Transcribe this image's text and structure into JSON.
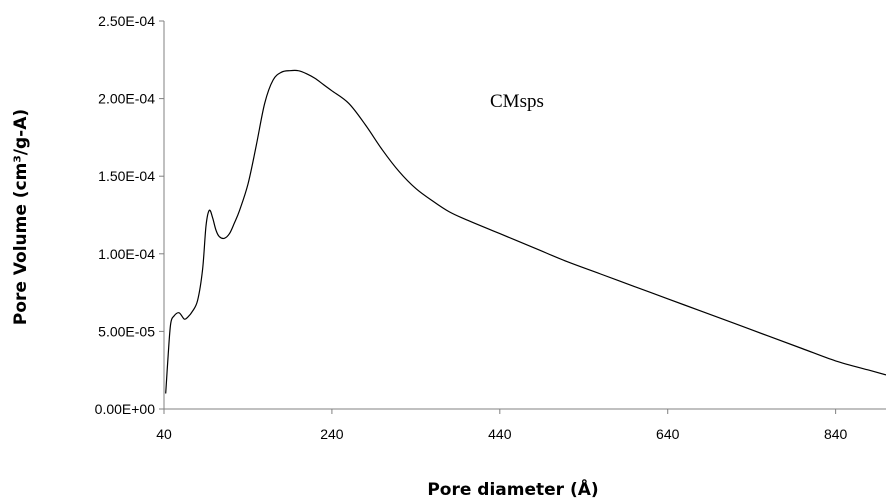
{
  "chart_data": {
    "type": "line",
    "xlabel": "Pore diameter (Å)",
    "ylabel": "Pore Volume (cm³/g-A)",
    "annotation": "CMsps",
    "xlim": [
      40,
      900
    ],
    "ylim": [
      0,
      0.00025
    ],
    "x_ticks": [
      40,
      240,
      440,
      640,
      840
    ],
    "x_tick_labels": [
      "40",
      "240",
      "440",
      "640",
      "840"
    ],
    "y_ticks": [
      0,
      5e-05,
      0.0001,
      0.00015,
      0.0002,
      0.00025
    ],
    "y_tick_labels": [
      "0.00E+00",
      "5.00E-05",
      "1.00E-04",
      "1.50E-04",
      "2.00E-04",
      "2.50E-04"
    ],
    "grid": false,
    "legend": "none",
    "series": [
      {
        "x": [
          42,
          45,
          48,
          52,
          58,
          64,
          68,
          74,
          80,
          86,
          90,
          94,
          98,
          102,
          106,
          112,
          118,
          124,
          130,
          140,
          150,
          160,
          170,
          180,
          190,
          200,
          210,
          220,
          230,
          240,
          260,
          280,
          300,
          320,
          340,
          360,
          380,
          400,
          440,
          480,
          520,
          560,
          600,
          640,
          680,
          720,
          760,
          800,
          840,
          880,
          900
        ],
        "y": [
          1e-05,
          3.5e-05,
          5.5e-05,
          6e-05,
          6.2e-05,
          5.8e-05,
          5.9e-05,
          6.3e-05,
          7e-05,
          9e-05,
          0.000118,
          0.000128,
          0.000123,
          0.000115,
          0.000111,
          0.00011,
          0.000113,
          0.00012,
          0.000128,
          0.000145,
          0.00017,
          0.000197,
          0.000212,
          0.000217,
          0.000218,
          0.000218,
          0.000216,
          0.000213,
          0.000209,
          0.000205,
          0.000197,
          0.000183,
          0.000167,
          0.000153,
          0.000142,
          0.000134,
          0.000127,
          0.000122,
          0.000113,
          0.000104,
          9.5e-05,
          8.7e-05,
          7.9e-05,
          7.1e-05,
          6.3e-05,
          5.5e-05,
          4.7e-05,
          3.9e-05,
          3.1e-05,
          2.5e-05,
          2.2e-05
        ]
      }
    ]
  }
}
